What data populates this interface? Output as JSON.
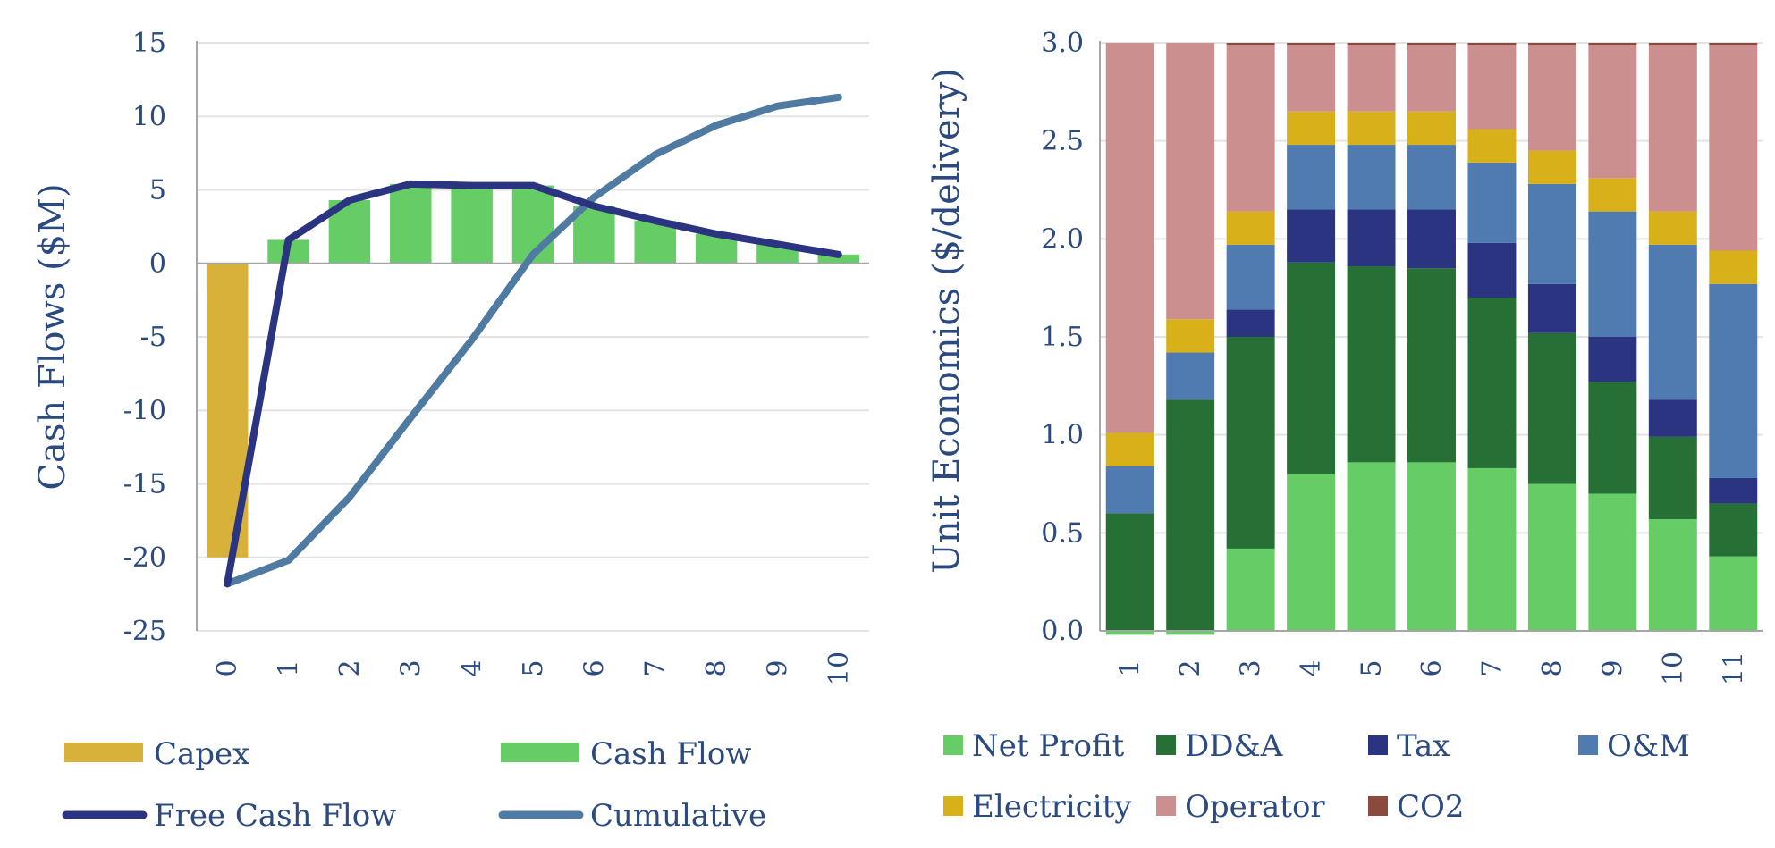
{
  "chart_data": [
    {
      "type": "bar",
      "ylabel": "Cash Flows ($M)",
      "xlabel": "",
      "ylim": [
        -25,
        15
      ],
      "yticks": [
        "15",
        "10",
        "5",
        "0",
        "-5",
        "-10",
        "-15",
        "-20",
        "-25"
      ],
      "categories": [
        "0",
        "1",
        "2",
        "3",
        "4",
        "5",
        "6",
        "7",
        "8",
        "9",
        "10"
      ],
      "grid": true,
      "legend_position": "bottom",
      "series": [
        {
          "name": "Capex",
          "kind": "bar",
          "color": "#d8b13a",
          "values": [
            -20,
            0,
            0,
            0,
            0,
            0,
            0,
            0,
            0,
            0,
            0
          ]
        },
        {
          "name": "Cash Flow",
          "kind": "bar",
          "color": "#66cc66",
          "values": [
            -1.8,
            1.6,
            4.3,
            5.4,
            5.3,
            5.3,
            3.9,
            2.9,
            2.0,
            1.3,
            0.6
          ]
        },
        {
          "name": "Free Cash Flow",
          "kind": "line",
          "color": "#2b3480",
          "values": [
            -21.8,
            1.6,
            4.3,
            5.4,
            5.3,
            5.3,
            3.9,
            2.9,
            2.0,
            1.3,
            0.6
          ]
        },
        {
          "name": "Cumulative",
          "kind": "line",
          "color": "#4f7ba3",
          "values": [
            -21.8,
            -20.2,
            -15.9,
            -10.5,
            -5.2,
            0.6,
            4.5,
            7.4,
            9.4,
            10.7,
            11.3
          ]
        }
      ]
    },
    {
      "type": "bar",
      "stacked": true,
      "ylabel": "Unit Economics ($/delivery)",
      "xlabel": "",
      "ylim": [
        0,
        3
      ],
      "yticks": [
        "3.0",
        "2.5",
        "2.0",
        "1.5",
        "1.0",
        "0.5",
        "0.0"
      ],
      "categories": [
        "1",
        "2",
        "3",
        "4",
        "5",
        "6",
        "7",
        "8",
        "9",
        "10",
        "11"
      ],
      "grid": true,
      "legend_position": "bottom",
      "series": [
        {
          "name": "Net Profit",
          "color": "#66cc66",
          "values": [
            -0.02,
            -0.02,
            0.42,
            0.8,
            0.86,
            0.86,
            0.83,
            0.75,
            0.7,
            0.57,
            0.38
          ]
        },
        {
          "name": "DD&A",
          "color": "#267036",
          "values": [
            0.6,
            1.18,
            1.08,
            1.08,
            1.0,
            0.99,
            0.87,
            0.77,
            0.57,
            0.42,
            0.27
          ]
        },
        {
          "name": "Tax",
          "color": "#2b3480",
          "values": [
            0,
            0,
            0.14,
            0.27,
            0.29,
            0.3,
            0.28,
            0.25,
            0.23,
            0.19,
            0.13
          ]
        },
        {
          "name": "O&M",
          "color": "#4f7bb0",
          "values": [
            0.24,
            0.24,
            0.33,
            0.33,
            0.33,
            0.33,
            0.41,
            0.51,
            0.64,
            0.79,
            0.99
          ]
        },
        {
          "name": "Electricity",
          "color": "#d8b11a",
          "values": [
            0.17,
            0.17,
            0.17,
            0.17,
            0.17,
            0.17,
            0.17,
            0.17,
            0.17,
            0.17,
            0.17
          ]
        },
        {
          "name": "Operator",
          "color": "#cc8f8f",
          "values": [
            2.0,
            1.42,
            0.85,
            0.34,
            0.34,
            0.34,
            0.43,
            0.54,
            0.68,
            0.85,
            1.05
          ]
        },
        {
          "name": "CO2",
          "color": "#8b4a3e",
          "values": [
            0,
            0,
            0.01,
            0.01,
            0.01,
            0.01,
            0.01,
            0.01,
            0.01,
            0.01,
            0.01
          ]
        }
      ]
    }
  ]
}
